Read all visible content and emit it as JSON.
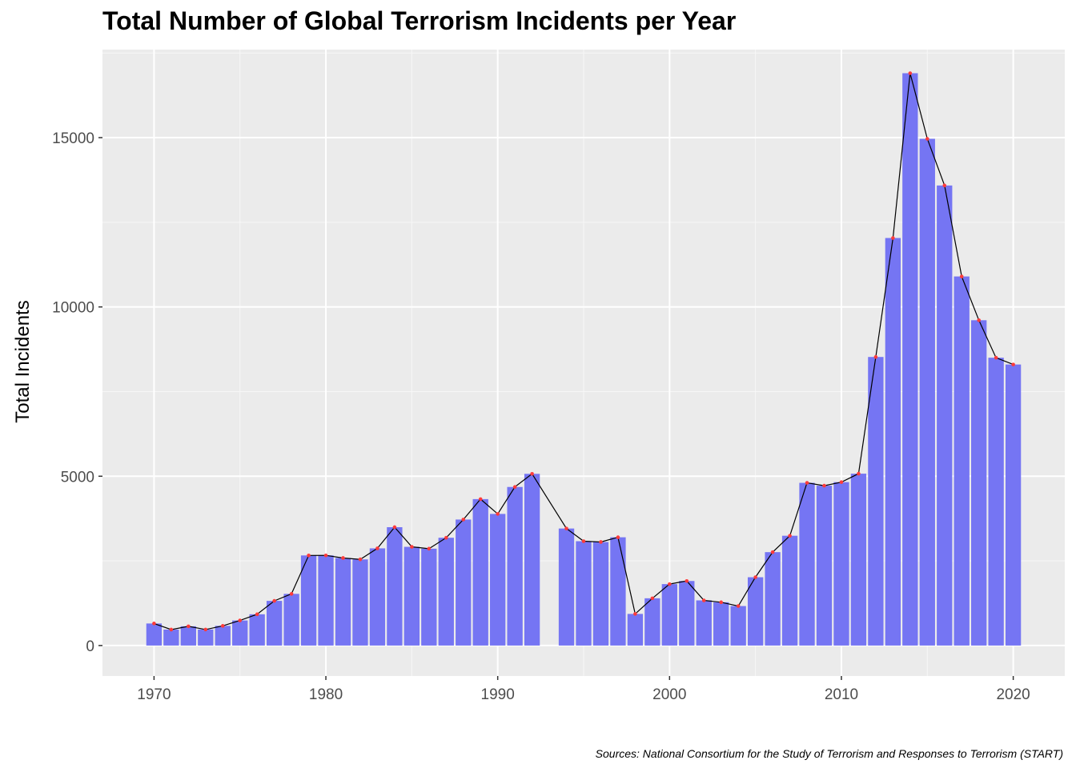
{
  "chart_data": {
    "type": "bar",
    "title": "Total Number of Global Terrorism Incidents per Year",
    "ylabel": "Total Incidents",
    "xlabel": "",
    "caption": "Sources: National Consortium for the Study of Terrorism and Responses to Terrorism (START)",
    "xlim": [
      1967,
      2023
    ],
    "ylim": [
      -900,
      17600
    ],
    "x_ticks": [
      1970,
      1980,
      1990,
      2000,
      2010,
      2020
    ],
    "y_ticks": [
      0,
      5000,
      10000,
      15000
    ],
    "grid": true,
    "bar_color": "#7575f3",
    "line_color": "#000000",
    "point_color": "#ff3b3b",
    "panel_color": "#ebebeb",
    "x": [
      1970,
      1971,
      1972,
      1973,
      1974,
      1975,
      1976,
      1977,
      1978,
      1979,
      1980,
      1981,
      1982,
      1983,
      1984,
      1985,
      1986,
      1987,
      1988,
      1989,
      1990,
      1991,
      1992,
      1994,
      1995,
      1996,
      1997,
      1998,
      1999,
      2000,
      2001,
      2002,
      2003,
      2004,
      2005,
      2006,
      2007,
      2008,
      2009,
      2010,
      2011,
      2012,
      2013,
      2014,
      2015,
      2016,
      2017,
      2018,
      2019,
      2020
    ],
    "values": [
      651,
      471,
      568,
      473,
      581,
      740,
      923,
      1319,
      1526,
      2661,
      2662,
      2586,
      2544,
      2870,
      3495,
      2915,
      2860,
      3183,
      3721,
      4324,
      3887,
      4683,
      5071,
      3456,
      3081,
      3058,
      3197,
      934,
      1395,
      1814,
      1906,
      1333,
      1278,
      1166,
      2017,
      2758,
      3242,
      4805,
      4721,
      4826,
      5076,
      8522,
      12036,
      16903,
      14965,
      13587,
      10900,
      9607,
      8500,
      8300
    ]
  }
}
